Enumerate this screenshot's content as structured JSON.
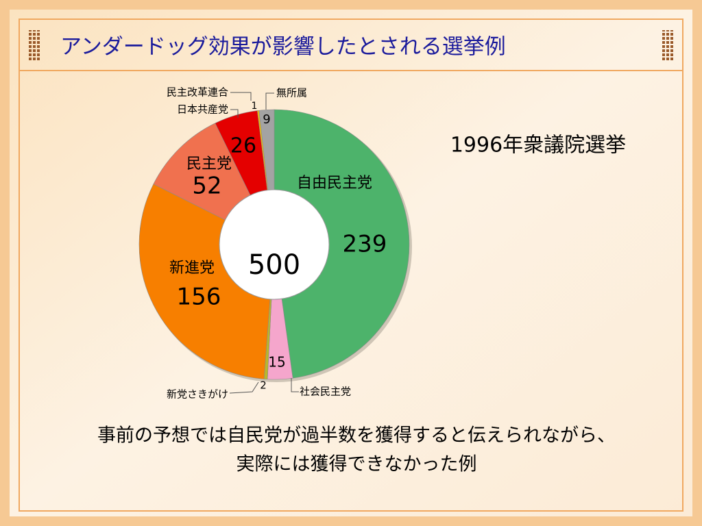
{
  "title": "アンダードッグ効果が影響したとされる選挙例",
  "chart_data": {
    "type": "pie",
    "donut": true,
    "subtitle": "1996年衆議院選挙",
    "total": 500,
    "categories": [
      "自由民主党",
      "社会民主党",
      "新党さきがけ",
      "新進党",
      "民主党",
      "日本共産党",
      "民主改革連合",
      "無所属"
    ],
    "values": [
      239,
      15,
      2,
      156,
      52,
      26,
      1,
      9
    ],
    "colors": [
      "#4db36b",
      "#f5a6cc",
      "#b8b82c",
      "#f77f00",
      "#f0714f",
      "#e40000",
      "#f2c200",
      "#a3a3a3"
    ]
  },
  "caption": [
    "事前の予想では自民党が過半数を獲得すると伝えられながら、",
    "実際には獲得できなかった例"
  ]
}
